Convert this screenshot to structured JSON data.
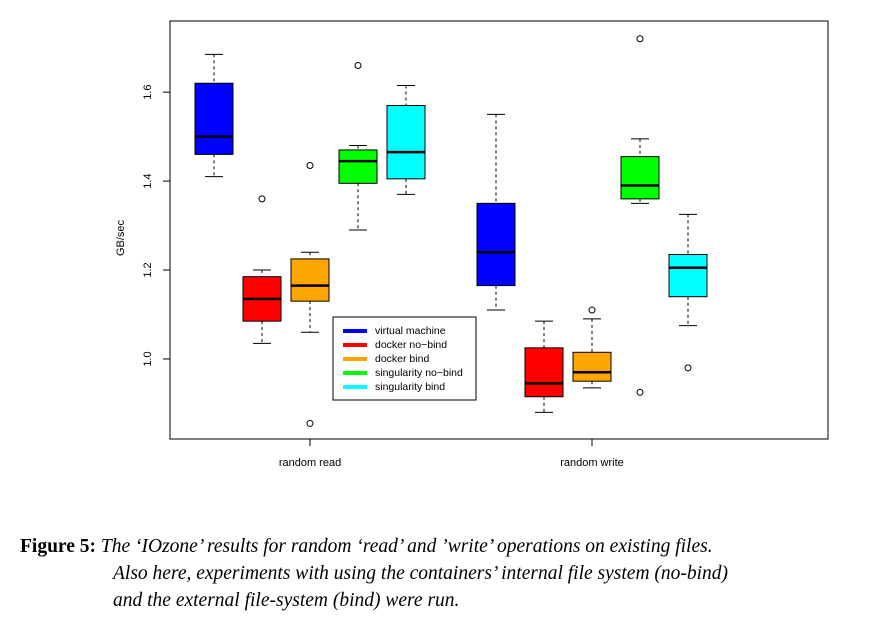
{
  "chart_data": {
    "type": "boxplot",
    "ylabel": "GB/sec",
    "ylim": [
      0.82,
      1.76
    ],
    "yticks": [
      "1.0",
      "1.2",
      "1.4",
      "1.6"
    ],
    "groups": [
      "random read",
      "random write"
    ],
    "legend": {
      "position": "center",
      "entries": [
        {
          "name": "virtual machine",
          "color": "#0000ff"
        },
        {
          "name": "docker no−bind",
          "color": "#ff0000"
        },
        {
          "name": "docker bind",
          "color": "#ffa500"
        },
        {
          "name": "singularity no−bind",
          "color": "#00ff00"
        },
        {
          "name": "singularity bind",
          "color": "#00ffff"
        }
      ]
    },
    "series": [
      {
        "name": "virtual machine",
        "color": "#0000ff",
        "boxes": [
          {
            "min": 1.41,
            "q1": 1.46,
            "median": 1.5,
            "q3": 1.62,
            "max": 1.685,
            "outliers": []
          },
          {
            "min": 1.11,
            "q1": 1.165,
            "median": 1.24,
            "q3": 1.35,
            "max": 1.55,
            "outliers": []
          }
        ]
      },
      {
        "name": "docker no−bind",
        "color": "#ff0000",
        "boxes": [
          {
            "min": 1.035,
            "q1": 1.085,
            "median": 1.135,
            "q3": 1.185,
            "max": 1.2,
            "outliers": [
              1.36
            ]
          },
          {
            "min": 0.88,
            "q1": 0.915,
            "median": 0.945,
            "q3": 1.025,
            "max": 1.085,
            "outliers": []
          }
        ]
      },
      {
        "name": "docker bind",
        "color": "#ffa500",
        "boxes": [
          {
            "min": 1.06,
            "q1": 1.13,
            "median": 1.165,
            "q3": 1.225,
            "max": 1.24,
            "outliers": [
              1.435,
              0.855
            ]
          },
          {
            "min": 0.935,
            "q1": 0.95,
            "median": 0.97,
            "q3": 1.015,
            "max": 1.09,
            "outliers": [
              1.11
            ]
          }
        ]
      },
      {
        "name": "singularity no−bind",
        "color": "#00ff00",
        "boxes": [
          {
            "min": 1.29,
            "q1": 1.395,
            "median": 1.445,
            "q3": 1.47,
            "max": 1.48,
            "outliers": [
              1.66
            ]
          },
          {
            "min": 1.35,
            "q1": 1.36,
            "median": 1.39,
            "q3": 1.455,
            "max": 1.495,
            "outliers": [
              1.72,
              0.925
            ]
          }
        ]
      },
      {
        "name": "singularity bind",
        "color": "#00ffff",
        "boxes": [
          {
            "min": 1.37,
            "q1": 1.405,
            "median": 1.465,
            "q3": 1.57,
            "max": 1.615,
            "outliers": []
          },
          {
            "min": 1.075,
            "q1": 1.14,
            "median": 1.205,
            "q3": 1.235,
            "max": 1.325,
            "outliers": [
              0.98
            ]
          }
        ]
      }
    ]
  },
  "caption": {
    "label": "Figure 5:",
    "line1": "The ‘IOzone’ results for random ‘read’ and ’write’ operations on existing files.",
    "line2": "Also here, experiments with using the containers’ internal file system (no-bind)",
    "line3": "and the external file-system (bind) were run."
  }
}
